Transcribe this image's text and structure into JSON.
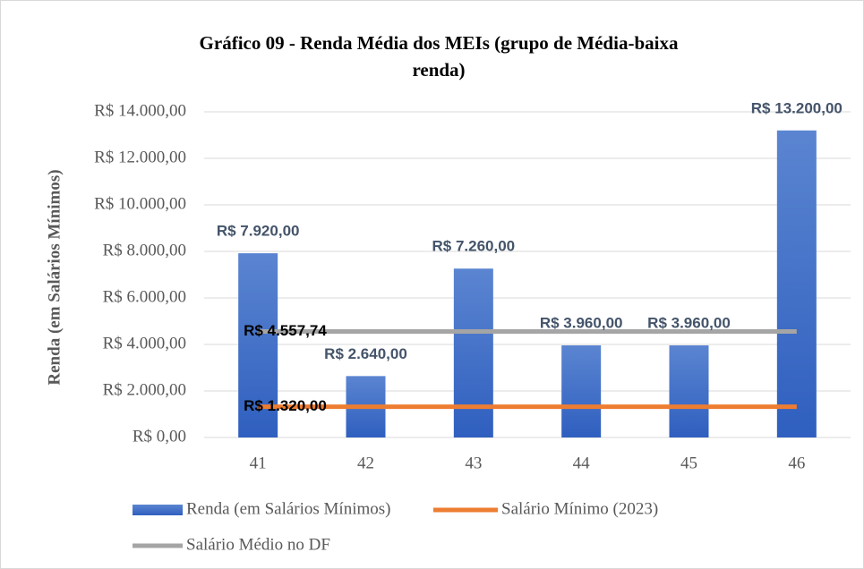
{
  "chart_data": {
    "type": "bar",
    "title": "Gráfico 09 - Renda Média dos MEIs (grupo de Média-baixa renda)",
    "y_label": "Renda (em Salários Mínimos)",
    "categories": [
      "41",
      "42",
      "43",
      "44",
      "45",
      "46"
    ],
    "series": [
      {
        "name": "Renda (em Salários Mínimos)",
        "type": "bar",
        "color": "#4472c4",
        "values": [
          7920,
          2640,
          7260,
          3960,
          3960,
          13200
        ],
        "value_labels": [
          "R$ 7.920,00",
          "R$ 2.640,00",
          "R$ 7.260,00",
          "R$ 3.960,00",
          "R$ 3.960,00",
          "R$ 13.200,00"
        ]
      },
      {
        "name": "Salário Mínimo (2023)",
        "type": "line",
        "color": "#ed7d31",
        "values": [
          1320,
          1320,
          1320,
          1320,
          1320,
          1320
        ],
        "value_labels": [
          "R$ 1.320,00",
          null,
          null,
          null,
          null,
          null
        ]
      },
      {
        "name": "Salário Médio no DF",
        "type": "line",
        "color": "#a5a5a5",
        "values": [
          4557.74,
          4557.74,
          4557.74,
          4557.74,
          4557.74,
          4557.74
        ],
        "value_labels": [
          "R$ 4.557,74",
          null,
          null,
          null,
          null,
          null
        ]
      }
    ],
    "ylim": [
      0,
      14000
    ],
    "yticks": [
      {
        "value": 0,
        "label": "R$ 0,00"
      },
      {
        "value": 2000,
        "label": "R$ 2.000,00"
      },
      {
        "value": 4000,
        "label": "R$ 4.000,00"
      },
      {
        "value": 6000,
        "label": "R$ 6.000,00"
      },
      {
        "value": 8000,
        "label": "R$ 8.000,00"
      },
      {
        "value": 10000,
        "label": "R$ 10.000,00"
      },
      {
        "value": 12000,
        "label": "R$ 12.000,00"
      },
      {
        "value": 14000,
        "label": "R$ 14.000,00"
      }
    ],
    "grid": true
  }
}
